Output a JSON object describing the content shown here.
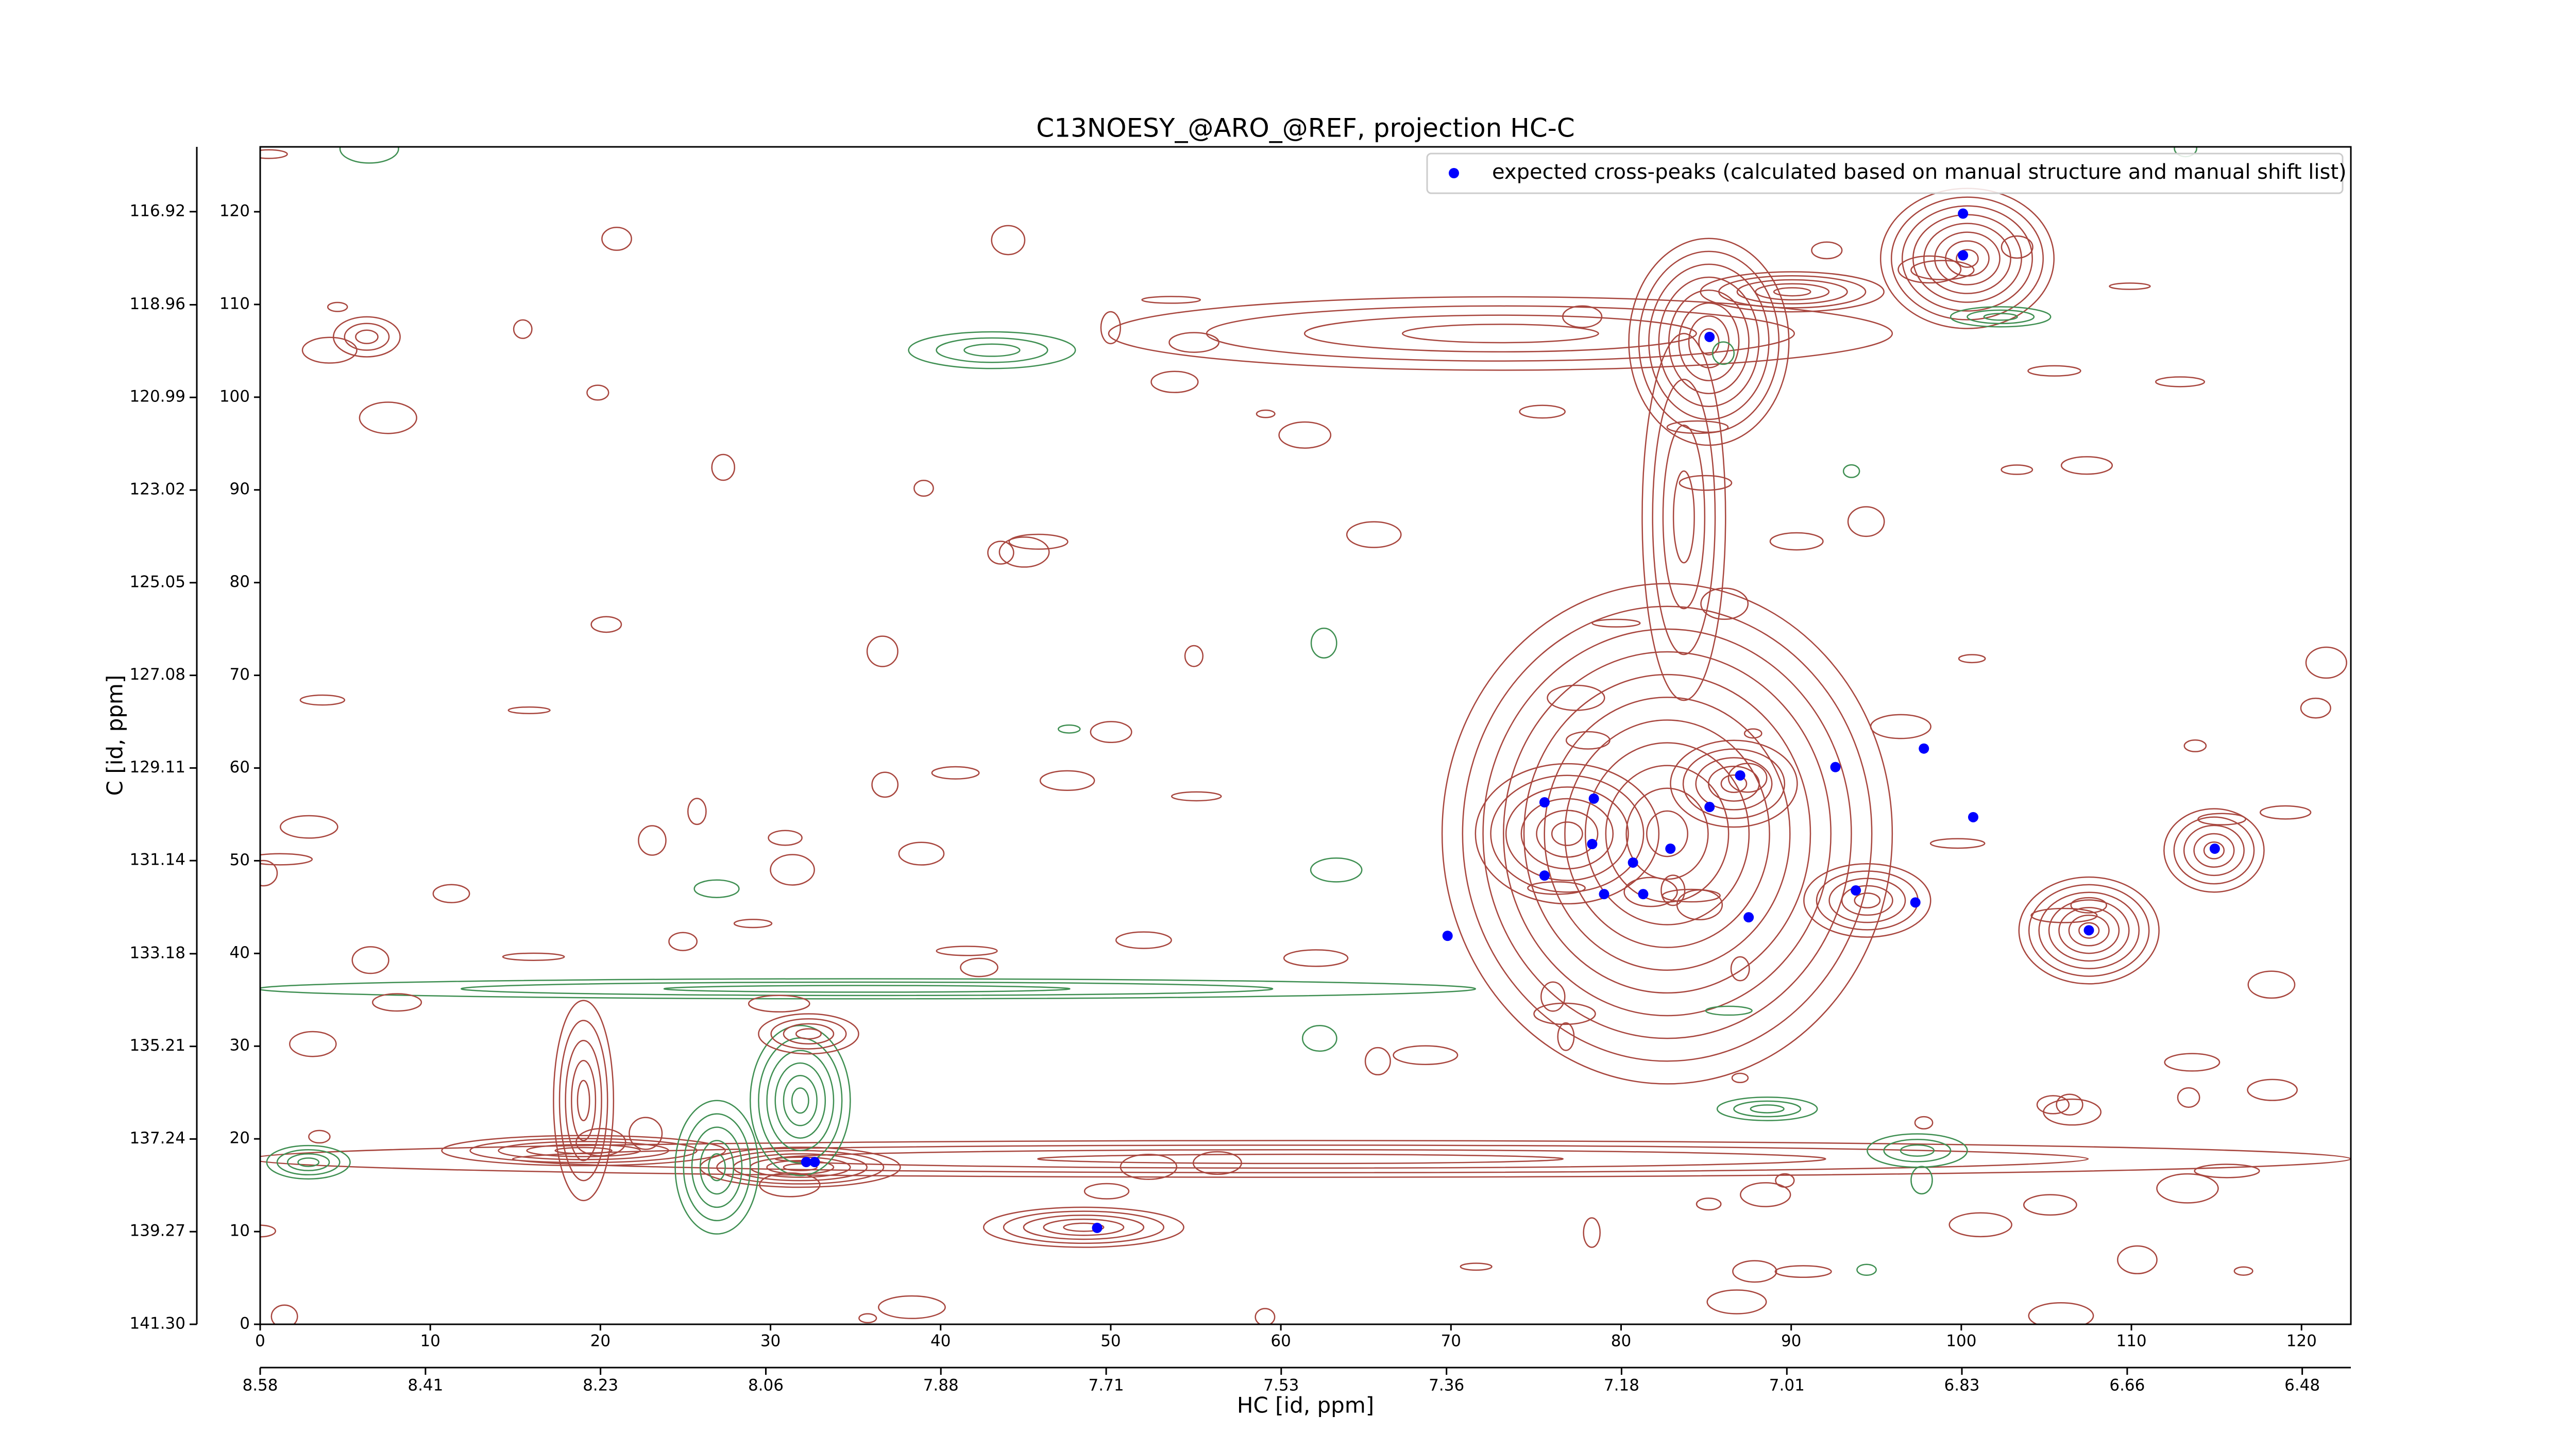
{
  "chart_data": {
    "type": "scatter",
    "title": "C13NOESY_@ARO_@REF, projection HC-C",
    "x_label": "HC [id, ppm]",
    "y_label": "C [id, ppm]",
    "xlim": [
      0,
      122.9
    ],
    "ylim": [
      0,
      127
    ],
    "xticks": [
      0,
      10,
      20,
      30,
      40,
      50,
      60,
      70,
      80,
      90,
      100,
      110,
      120
    ],
    "yticks": [
      0,
      10,
      20,
      30,
      40,
      50,
      60,
      70,
      80,
      90,
      100,
      110,
      120
    ],
    "x2lim": [
      8.58,
      6.43
    ],
    "x2ticks": [
      8.58,
      8.41,
      8.23,
      8.06,
      7.88,
      7.71,
      7.53,
      7.36,
      7.18,
      7.01,
      6.83,
      6.66,
      6.48
    ],
    "y2lim": [
      141.3,
      115.5
    ],
    "y2ticks": [
      {
        "value": 141.3,
        "label": "141.30"
      },
      139.27,
      137.24,
      135.21,
      133.18,
      131.14,
      129.11,
      127.08,
      125.05,
      123.02,
      120.99,
      118.96,
      116.92
    ],
    "grid": false,
    "legend": "upper right",
    "series": [
      {
        "name": "expected cross-peaks (calculated based on manual structure and manual shift list)",
        "color": "#0000ff",
        "x": [
          100.1,
          100.1,
          85.2,
          75.5,
          78.4,
          87.0,
          92.6,
          97.8,
          85.2,
          100.7,
          78.3,
          80.7,
          82.9,
          75.5,
          79.0,
          81.3,
          87.5,
          93.8,
          97.3,
          69.8,
          107.5,
          114.9,
          32.1,
          32.6,
          49.2
        ],
        "values": [
          119.8,
          115.3,
          106.5,
          56.3,
          56.7,
          59.2,
          60.1,
          62.1,
          55.8,
          54.7,
          51.8,
          49.8,
          51.3,
          48.4,
          46.4,
          46.4,
          43.9,
          46.8,
          45.5,
          41.9,
          42.5,
          51.3,
          17.5,
          17.5,
          10.4
        ]
      }
    ]
  }
}
